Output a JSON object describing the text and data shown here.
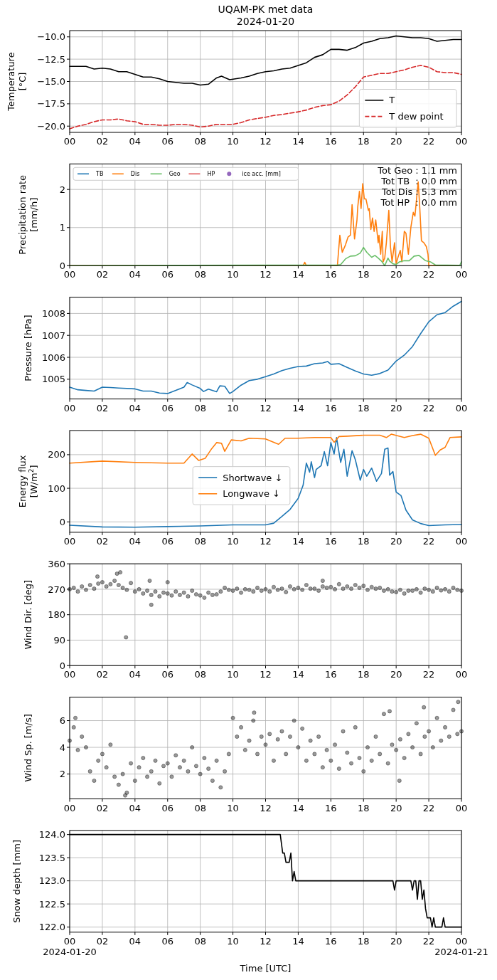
{
  "chart_data": [
    {
      "type": "line",
      "title": "UQAM-PK met data",
      "subtitle": "2024-01-20",
      "ylabel": "Temperature\n[°C]",
      "xlim": [
        0,
        24
      ],
      "xticks": [
        {
          "value": 0,
          "label": "00"
        },
        {
          "value": 2,
          "label": "02"
        },
        {
          "value": 4,
          "label": "04"
        },
        {
          "value": 6,
          "label": "06"
        },
        {
          "value": 8,
          "label": "08"
        },
        {
          "value": 10,
          "label": "10"
        },
        {
          "value": 12,
          "label": "12"
        },
        {
          "value": 14,
          "label": "14"
        },
        {
          "value": 16,
          "label": "16"
        },
        {
          "value": 18,
          "label": "18"
        },
        {
          "value": 20,
          "label": "20"
        },
        {
          "value": 22,
          "label": "22"
        },
        {
          "value": 24,
          "label": "00"
        }
      ],
      "ylim": [
        -20.7,
        -9.3
      ],
      "yticks": [
        {
          "value": -20,
          "label": "−20.0"
        },
        {
          "value": -17.5,
          "label": "−17.5"
        },
        {
          "value": -15,
          "label": "−15.0"
        },
        {
          "value": -12.5,
          "label": "−12.5"
        },
        {
          "value": -10,
          "label": "−10.0"
        }
      ],
      "grid": true,
      "legend": "bottom right",
      "series": [
        {
          "name": "T",
          "color": "#000000",
          "line_style": "solid",
          "x": [
            0,
            1,
            1.5,
            2,
            2.5,
            3,
            3.5,
            4,
            4.5,
            5,
            5.5,
            6,
            6.5,
            7,
            7.5,
            8,
            8.5,
            9,
            9.3,
            9.8,
            10.5,
            11,
            11.5,
            12,
            12.5,
            13,
            13.5,
            14,
            14.5,
            15,
            15.5,
            16,
            16.5,
            17,
            17.5,
            18,
            18.5,
            19,
            19.5,
            20,
            20.5,
            21,
            21.5,
            22,
            22.5,
            23,
            23.5,
            24
          ],
          "values": [
            -13.3,
            -13.3,
            -13.6,
            -13.5,
            -13.6,
            -13.9,
            -13.9,
            -14.2,
            -14.5,
            -14.5,
            -14.7,
            -15.0,
            -15.1,
            -15.2,
            -15.2,
            -15.4,
            -15.3,
            -14.6,
            -14.4,
            -14.8,
            -14.6,
            -14.4,
            -14.1,
            -13.9,
            -13.8,
            -13.6,
            -13.5,
            -13.2,
            -12.9,
            -12.3,
            -12.0,
            -11.4,
            -11.4,
            -11.5,
            -11.2,
            -10.7,
            -10.5,
            -10.2,
            -10.1,
            -9.9,
            -10.0,
            -10.1,
            -10.1,
            -10.2,
            -10.5,
            -10.4,
            -10.3,
            -10.3
          ]
        },
        {
          "name": "T dew point",
          "color": "#d62728",
          "line_style": "dashed",
          "x": [
            0,
            0.5,
            1,
            1.5,
            2,
            2.5,
            3,
            3.5,
            4,
            4.5,
            5,
            5.5,
            6,
            6.5,
            7,
            7.5,
            8,
            8.5,
            9,
            10,
            10.5,
            11,
            12,
            12.5,
            13,
            14,
            14.5,
            15,
            15.5,
            16,
            16.5,
            17,
            17.5,
            18,
            18.5,
            19,
            19.5,
            20,
            20.5,
            21,
            21.5,
            22,
            22.5,
            23,
            23.5,
            24
          ],
          "values": [
            -20.3,
            -20.0,
            -19.8,
            -19.5,
            -19.3,
            -19.3,
            -19.2,
            -19.4,
            -19.5,
            -19.8,
            -19.8,
            -19.9,
            -19.9,
            -19.8,
            -19.8,
            -19.9,
            -20.1,
            -20.0,
            -19.8,
            -19.8,
            -19.6,
            -19.3,
            -19.0,
            -18.8,
            -18.7,
            -18.4,
            -18.2,
            -17.9,
            -17.7,
            -17.6,
            -17.2,
            -16.5,
            -15.6,
            -14.5,
            -14.3,
            -14.1,
            -14.1,
            -13.9,
            -13.7,
            -13.4,
            -13.2,
            -13.4,
            -13.9,
            -14.0,
            -14.0,
            -14.2
          ]
        }
      ]
    },
    {
      "type": "line",
      "ylabel": "Precipitation rate\n[mm/h]",
      "xlim": [
        0,
        24
      ],
      "xticks": [
        {
          "value": 0,
          "label": "00"
        },
        {
          "value": 2,
          "label": "02"
        },
        {
          "value": 4,
          "label": "04"
        },
        {
          "value": 6,
          "label": "06"
        },
        {
          "value": 8,
          "label": "08"
        },
        {
          "value": 10,
          "label": "10"
        },
        {
          "value": 12,
          "label": "12"
        },
        {
          "value": 14,
          "label": "14"
        },
        {
          "value": 16,
          "label": "16"
        },
        {
          "value": 18,
          "label": "18"
        },
        {
          "value": 20,
          "label": "20"
        },
        {
          "value": 22,
          "label": "22"
        },
        {
          "value": 24,
          "label": "00"
        }
      ],
      "ylim": [
        0,
        2.67
      ],
      "yticks": [
        0,
        1,
        2
      ],
      "grid": true,
      "legend": "top left",
      "annotations": [
        "Tot Geo : 1.1 mm",
        "Tot TB  : 0.0 mm",
        "Tot Dis : 5.3 mm",
        "Tot HP  : 0.0 mm"
      ],
      "series": [
        {
          "name": "TB",
          "color": "#1f77b4"
        },
        {
          "name": "Dis",
          "color": "#ff7f0e",
          "x": [
            0,
            14.3,
            14.4,
            14.5,
            16.4,
            16.55,
            16.7,
            16.9,
            17.05,
            17.2,
            17.3,
            17.45,
            17.6,
            17.65,
            17.75,
            17.85,
            17.95,
            18.05,
            18.15,
            18.3,
            18.35,
            18.45,
            18.55,
            18.65,
            18.75,
            18.9,
            18.95,
            19.05,
            19.15,
            19.2,
            19.3,
            19.4,
            19.55,
            19.65,
            19.75,
            19.9,
            20.0,
            20.1,
            20.25,
            20.35,
            20.5,
            20.6,
            20.75,
            20.9,
            21.05,
            21.15,
            21.35,
            21.45,
            21.55,
            21.7,
            21.85,
            21.95,
            22.0,
            23.8
          ],
          "values": [
            0,
            0,
            0.09,
            0,
            0,
            0.8,
            0.35,
            0.55,
            0.75,
            0.8,
            1.6,
            0.7,
            1.2,
            1.55,
            1.95,
            1.5,
            2.15,
            1.75,
            1.75,
            1.45,
            1.5,
            0.95,
            1.25,
            0.9,
            1.2,
            0.6,
            0.8,
            0.3,
            0.9,
            0.1,
            0.2,
            0.6,
            1.45,
            0.5,
            0.1,
            0.6,
            0.05,
            0.2,
            0.4,
            0.1,
            0.9,
            0.85,
            0.3,
            1.0,
            1.4,
            1.3,
            2.2,
            1.5,
            0.65,
            0.6,
            0.5,
            0.3,
            0,
            0
          ]
        },
        {
          "name": "Geo",
          "color": "#6abf69",
          "x": [
            0,
            16.4,
            16.6,
            16.9,
            17.2,
            17.5,
            17.8,
            18.0,
            18.2,
            18.5,
            18.7,
            18.9,
            19.1,
            19.3,
            19.5,
            19.6,
            19.8,
            20.0,
            20.2,
            20.5,
            20.8,
            21.1,
            21.4,
            21.6,
            21.8,
            22.1,
            22.4,
            23.9,
            24
          ],
          "values": [
            0,
            0.02,
            0.03,
            0.18,
            0.25,
            0.26,
            0.33,
            0.48,
            0.35,
            0.22,
            0.27,
            0.2,
            0.12,
            0,
            0.2,
            0.12,
            0.05,
            0.03,
            0.1,
            0.13,
            0.13,
            0.25,
            0.27,
            0.2,
            0.13,
            0.1,
            0.02,
            0.01,
            0.1
          ]
        },
        {
          "name": "HP",
          "color": "#e05a5b"
        },
        {
          "name": "ice acc. [mm]",
          "type": "scatter",
          "color": "#9467bd"
        }
      ]
    },
    {
      "type": "line",
      "ylabel": "Pressure [hPa]",
      "xlim": [
        0,
        24
      ],
      "xticks": [
        {
          "value": 0,
          "label": "00"
        },
        {
          "value": 2,
          "label": "02"
        },
        {
          "value": 4,
          "label": "04"
        },
        {
          "value": 6,
          "label": "06"
        },
        {
          "value": 8,
          "label": "08"
        },
        {
          "value": 10,
          "label": "10"
        },
        {
          "value": 12,
          "label": "12"
        },
        {
          "value": 14,
          "label": "14"
        },
        {
          "value": 16,
          "label": "16"
        },
        {
          "value": 18,
          "label": "18"
        },
        {
          "value": 20,
          "label": "20"
        },
        {
          "value": 22,
          "label": "22"
        },
        {
          "value": 24,
          "label": "00"
        }
      ],
      "ylim": [
        1004.1,
        1008.74
      ],
      "yticks": [
        1005,
        1006,
        1007,
        1008
      ],
      "grid": true,
      "series": [
        {
          "color": "#1f77b4",
          "x": [
            0,
            0.5,
            1,
            1.5,
            2,
            2.5,
            3,
            4,
            4.5,
            5,
            5.5,
            6,
            6.5,
            7,
            7.2,
            7.5,
            8,
            8.2,
            8.5,
            9,
            9.2,
            9.5,
            9.8,
            10,
            10.5,
            11,
            11.5,
            12,
            12.5,
            13,
            13.5,
            14,
            14.5,
            15,
            15.5,
            15.8,
            16,
            16.5,
            17,
            17.5,
            18,
            18.5,
            19,
            19.5,
            20,
            20.5,
            21,
            21.5,
            22,
            22.5,
            23,
            23.5,
            24
          ],
          "values": [
            1004.64,
            1004.52,
            1004.49,
            1004.46,
            1004.64,
            1004.62,
            1004.6,
            1004.56,
            1004.46,
            1004.46,
            1004.37,
            1004.35,
            1004.49,
            1004.64,
            1004.85,
            1004.74,
            1004.58,
            1004.44,
            1004.55,
            1004.43,
            1004.7,
            1004.68,
            1004.35,
            1004.44,
            1004.73,
            1004.94,
            1005.0,
            1005.12,
            1005.24,
            1005.39,
            1005.5,
            1005.58,
            1005.6,
            1005.71,
            1005.74,
            1005.81,
            1005.68,
            1005.71,
            1005.54,
            1005.38,
            1005.24,
            1005.18,
            1005.26,
            1005.42,
            1005.83,
            1006.1,
            1006.49,
            1007.08,
            1007.62,
            1007.94,
            1008.04,
            1008.33,
            1008.55
          ]
        }
      ]
    },
    {
      "type": "line",
      "ylabel": "Energy flux\n[W/m$^{2}$]",
      "xlim": [
        0,
        24
      ],
      "xticks": [
        {
          "value": 0,
          "label": "00"
        },
        {
          "value": 2,
          "label": "02"
        },
        {
          "value": 4,
          "label": "04"
        },
        {
          "value": 6,
          "label": "06"
        },
        {
          "value": 8,
          "label": "08"
        },
        {
          "value": 10,
          "label": "10"
        },
        {
          "value": 12,
          "label": "12"
        },
        {
          "value": 14,
          "label": "14"
        },
        {
          "value": 16,
          "label": "16"
        },
        {
          "value": 18,
          "label": "18"
        },
        {
          "value": 20,
          "label": "20"
        },
        {
          "value": 22,
          "label": "22"
        },
        {
          "value": 24,
          "label": "00"
        }
      ],
      "ylim": [
        -31,
        272
      ],
      "yticks": [
        0,
        100,
        200
      ],
      "grid": true,
      "legend": "center",
      "series": [
        {
          "name": "Shortwave ↓",
          "color": "#1f77b4",
          "x": [
            0,
            2,
            4,
            6,
            8,
            10,
            12,
            12.5,
            13,
            13.5,
            14,
            14.3,
            14.5,
            14.7,
            14.8,
            15.0,
            15.1,
            15.4,
            15.6,
            15.8,
            16.0,
            16.2,
            16.35,
            16.6,
            16.8,
            17.0,
            17.3,
            17.5,
            17.8,
            18.0,
            18.2,
            18.5,
            18.8,
            19.1,
            19.3,
            19.5,
            19.6,
            19.8,
            20.0,
            20.3,
            20.6,
            21.0,
            21.5,
            22,
            23,
            24
          ],
          "values": [
            -10,
            -15,
            -16,
            -14,
            -12,
            -9,
            -9,
            -4,
            16,
            37,
            70,
            109,
            175,
            148,
            179,
            132,
            156,
            167,
            209,
            167,
            236,
            202,
            251,
            177,
            216,
            136,
            212,
            185,
            124,
            156,
            136,
            160,
            121,
            144,
            216,
            220,
            139,
            150,
            89,
            78,
            35,
            6,
            -5,
            -11,
            -9,
            -8
          ]
        },
        {
          "name": "Longwave ↓",
          "color": "#ff7f0e",
          "x": [
            0,
            2,
            4,
            6,
            7,
            7.5,
            7.9,
            8.3,
            8.7,
            9.0,
            9.3,
            9.5,
            9.9,
            10.5,
            11,
            12,
            12.5,
            12.8,
            13.2,
            14,
            15,
            16,
            16.2,
            16.5,
            17,
            18,
            19,
            19.4,
            19.7,
            20.5,
            21,
            21.5,
            22,
            22.4,
            22.7,
            23,
            23.3,
            24
          ],
          "values": [
            175,
            181,
            177,
            175,
            175,
            202,
            183,
            189,
            218,
            236,
            234,
            210,
            244,
            241,
            249,
            247,
            237,
            231,
            249,
            249,
            251,
            251,
            237,
            254,
            255,
            258,
            258,
            251,
            261,
            251,
            257,
            261,
            249,
            198,
            214,
            222,
            251,
            253
          ]
        }
      ]
    },
    {
      "type": "scatter",
      "marker": "circle",
      "ylabel": "Wind Dir. [deg]",
      "xlim": [
        0,
        24
      ],
      "xticks": [
        {
          "value": 0,
          "label": "00"
        },
        {
          "value": 2,
          "label": "02"
        },
        {
          "value": 4,
          "label": "04"
        },
        {
          "value": 6,
          "label": "06"
        },
        {
          "value": 8,
          "label": "08"
        },
        {
          "value": 10,
          "label": "10"
        },
        {
          "value": 12,
          "label": "12"
        },
        {
          "value": 14,
          "label": "14"
        },
        {
          "value": 16,
          "label": "16"
        },
        {
          "value": 18,
          "label": "18"
        },
        {
          "value": 20,
          "label": "20"
        },
        {
          "value": 22,
          "label": "22"
        },
        {
          "value": 24,
          "label": "00"
        }
      ],
      "ylim": [
        0,
        360
      ],
      "yticks": [
        0,
        90,
        180,
        270,
        360
      ],
      "grid": true,
      "series": [
        {
          "color": "#000000",
          "x": [
            0,
            0.25,
            0.5,
            0.75,
            1,
            1.25,
            1.5,
            1.75,
            2,
            2.25,
            2.5,
            2.75,
            3,
            3.25,
            3.5,
            3.75,
            4,
            4.25,
            4.5,
            4.75,
            5,
            5.25,
            5.5,
            5.75,
            6,
            6.25,
            6.5,
            6.75,
            7,
            7.25,
            7.5,
            7.75,
            8,
            8.25,
            8.5,
            8.75,
            9,
            9.25,
            9.5,
            9.75,
            10,
            10.25,
            10.5,
            10.75,
            11,
            11.25,
            11.5,
            11.75,
            12,
            12.25,
            12.5,
            12.75,
            13,
            13.25,
            13.5,
            13.75,
            14,
            14.25,
            14.5,
            14.75,
            15,
            15.25,
            15.5,
            15.75,
            16,
            16.25,
            16.5,
            16.75,
            17,
            17.25,
            17.5,
            17.75,
            18,
            18.25,
            18.5,
            18.75,
            19,
            19.25,
            19.5,
            19.75,
            20,
            20.25,
            20.5,
            20.75,
            21,
            21.25,
            21.5,
            21.75,
            22,
            22.25,
            22.5,
            22.75,
            23,
            23.25,
            23.5,
            23.75,
            24,
            3.45,
            5.0,
            2.9,
            3.1,
            4.9,
            6.0,
            1.7,
            15.5
          ],
          "values": [
            270,
            275,
            262,
            280,
            268,
            285,
            272,
            290,
            295,
            280,
            288,
            300,
            285,
            275,
            268,
            292,
            262,
            270,
            255,
            265,
            250,
            262,
            245,
            258,
            255,
            248,
            262,
            250,
            258,
            245,
            265,
            252,
            248,
            240,
            258,
            250,
            252,
            262,
            275,
            268,
            265,
            272,
            258,
            270,
            268,
            262,
            275,
            265,
            270,
            262,
            278,
            268,
            272,
            260,
            280,
            270,
            275,
            268,
            285,
            272,
            272,
            265,
            280,
            275,
            278,
            270,
            288,
            272,
            280,
            272,
            285,
            275,
            282,
            268,
            278,
            272,
            275,
            265,
            270,
            262,
            260,
            268,
            255,
            265,
            265,
            270,
            258,
            272,
            268,
            262,
            275,
            266,
            270,
            262,
            275,
            268,
            265,
            100,
            215,
            325,
            330,
            300,
            295,
            315,
            300
          ]
        }
      ]
    },
    {
      "type": "scatter",
      "marker": "circle",
      "ylabel": "Wind Sp. [m/s]",
      "xlim": [
        0,
        24
      ],
      "xticks": [
        {
          "value": 0,
          "label": "00"
        },
        {
          "value": 2,
          "label": "02"
        },
        {
          "value": 4,
          "label": "04"
        },
        {
          "value": 6,
          "label": "06"
        },
        {
          "value": 8,
          "label": "08"
        },
        {
          "value": 10,
          "label": "10"
        },
        {
          "value": 12,
          "label": "12"
        },
        {
          "value": 14,
          "label": "14"
        },
        {
          "value": 16,
          "label": "16"
        },
        {
          "value": 18,
          "label": "18"
        },
        {
          "value": 20,
          "label": "20"
        },
        {
          "value": 22,
          "label": "22"
        },
        {
          "value": 24,
          "label": "00"
        }
      ],
      "ylim": [
        0.14,
        7.76
      ],
      "yticks": [
        2,
        4,
        6
      ],
      "grid": true,
      "series": [
        {
          "color": "#000000",
          "x": [
            0,
            0.25,
            0.5,
            0.75,
            1,
            1.25,
            1.5,
            1.75,
            2,
            2.25,
            2.5,
            2.75,
            3,
            3.25,
            3.5,
            3.75,
            4,
            4.25,
            4.5,
            4.75,
            5,
            5.25,
            5.5,
            5.75,
            6,
            6.25,
            6.5,
            6.75,
            7,
            7.25,
            7.5,
            7.75,
            8,
            8.25,
            8.5,
            8.75,
            9,
            9.25,
            9.5,
            9.75,
            10,
            10.25,
            10.5,
            10.75,
            11,
            11.25,
            11.5,
            11.75,
            12,
            12.25,
            12.5,
            12.75,
            13,
            13.25,
            13.5,
            13.75,
            14,
            14.25,
            14.5,
            14.75,
            15,
            15.25,
            15.5,
            15.75,
            16,
            16.25,
            16.5,
            16.75,
            17,
            17.25,
            17.5,
            17.75,
            18,
            18.25,
            18.5,
            18.75,
            19,
            19.25,
            19.5,
            19.75,
            20,
            20.25,
            20.5,
            20.75,
            21,
            21.25,
            21.5,
            21.75,
            22,
            22.25,
            22.5,
            22.75,
            23,
            23.25,
            23.5,
            23.75,
            24,
            0.35,
            11.3,
            19.6,
            21.7,
            23.8,
            20.2,
            3.4
          ],
          "values": [
            4.5,
            5.5,
            3.8,
            4.8,
            4.0,
            2.2,
            1.5,
            3.0,
            3.5,
            2.5,
            4.2,
            1.8,
            1.2,
            2.0,
            0.6,
            2.8,
            1.5,
            2.5,
            3.2,
            1.8,
            2.2,
            3.0,
            1.3,
            2.6,
            2.8,
            1.8,
            3.4,
            2.5,
            3.0,
            2.2,
            4.0,
            2.6,
            2.0,
            3.2,
            2.4,
            1.5,
            3.0,
            1.0,
            2.2,
            3.5,
            6.2,
            4.8,
            5.5,
            3.8,
            4.5,
            6.0,
            3.5,
            4.8,
            4.2,
            5.0,
            3.0,
            4.6,
            5.2,
            3.5,
            4.8,
            6.0,
            4.0,
            5.4,
            3.0,
            4.5,
            3.5,
            4.8,
            2.5,
            3.8,
            3.0,
            4.2,
            2.4,
            5.2,
            3.6,
            2.8,
            5.5,
            3.2,
            2.2,
            4.0,
            3.0,
            4.8,
            3.5,
            6.5,
            2.8,
            4.2,
            3.8,
            4.6,
            3.2,
            5.0,
            4.0,
            5.8,
            3.5,
            4.8,
            5.2,
            4.0,
            6.2,
            4.5,
            5.5,
            4.8,
            6.8,
            5.0,
            5.2,
            6.2,
            6.6,
            6.7,
            7.0,
            7.4,
            1.5,
            0.4
          ]
        }
      ]
    },
    {
      "type": "line",
      "ylabel": "Snow depth [mm]",
      "xlabel": "Time [UTC]",
      "xlim": [
        0,
        24
      ],
      "xticks": [
        {
          "value": 0,
          "label": "00\n2024-01-20"
        },
        {
          "value": 2,
          "label": "02"
        },
        {
          "value": 4,
          "label": "04"
        },
        {
          "value": 6,
          "label": "06"
        },
        {
          "value": 8,
          "label": "08"
        },
        {
          "value": 10,
          "label": "10"
        },
        {
          "value": 12,
          "label": "12"
        },
        {
          "value": 14,
          "label": "14"
        },
        {
          "value": 16,
          "label": "16"
        },
        {
          "value": 18,
          "label": "18"
        },
        {
          "value": 20,
          "label": "20"
        },
        {
          "value": 22,
          "label": "22"
        },
        {
          "value": 24,
          "label": "00\n2024-01-21"
        }
      ],
      "ylim": [
        121.89,
        124.09
      ],
      "yticks": [
        {
          "value": 122,
          "label": "122.0"
        },
        {
          "value": 122.5,
          "label": "122.5"
        },
        {
          "value": 123,
          "label": "123.0"
        },
        {
          "value": 123.5,
          "label": "123.5"
        },
        {
          "value": 124,
          "label": "124.0"
        }
      ],
      "grid": true,
      "series": [
        {
          "color": "#000000",
          "x": [
            0,
            12.9,
            13.05,
            13.15,
            13.25,
            13.45,
            13.55,
            13.65,
            13.75,
            13.85,
            19.8,
            19.9,
            20.0,
            20.9,
            21.0,
            21.1,
            21.2,
            21.3,
            21.4,
            21.5,
            21.6,
            21.7,
            21.8,
            21.9,
            22.1,
            22.2,
            22.3,
            22.4,
            22.8,
            22.9,
            23.0,
            24
          ],
          "values": [
            124,
            124,
            123.6,
            123.6,
            123.4,
            123.4,
            123.6,
            123.0,
            123.2,
            123.0,
            123.0,
            122.8,
            123.0,
            123.0,
            122.8,
            123.0,
            123.0,
            122.6,
            123.0,
            123.0,
            122.6,
            122.8,
            122.4,
            122.2,
            122.2,
            122.0,
            122.2,
            122.0,
            122.0,
            122.2,
            122.0,
            122.0
          ]
        }
      ]
    }
  ]
}
